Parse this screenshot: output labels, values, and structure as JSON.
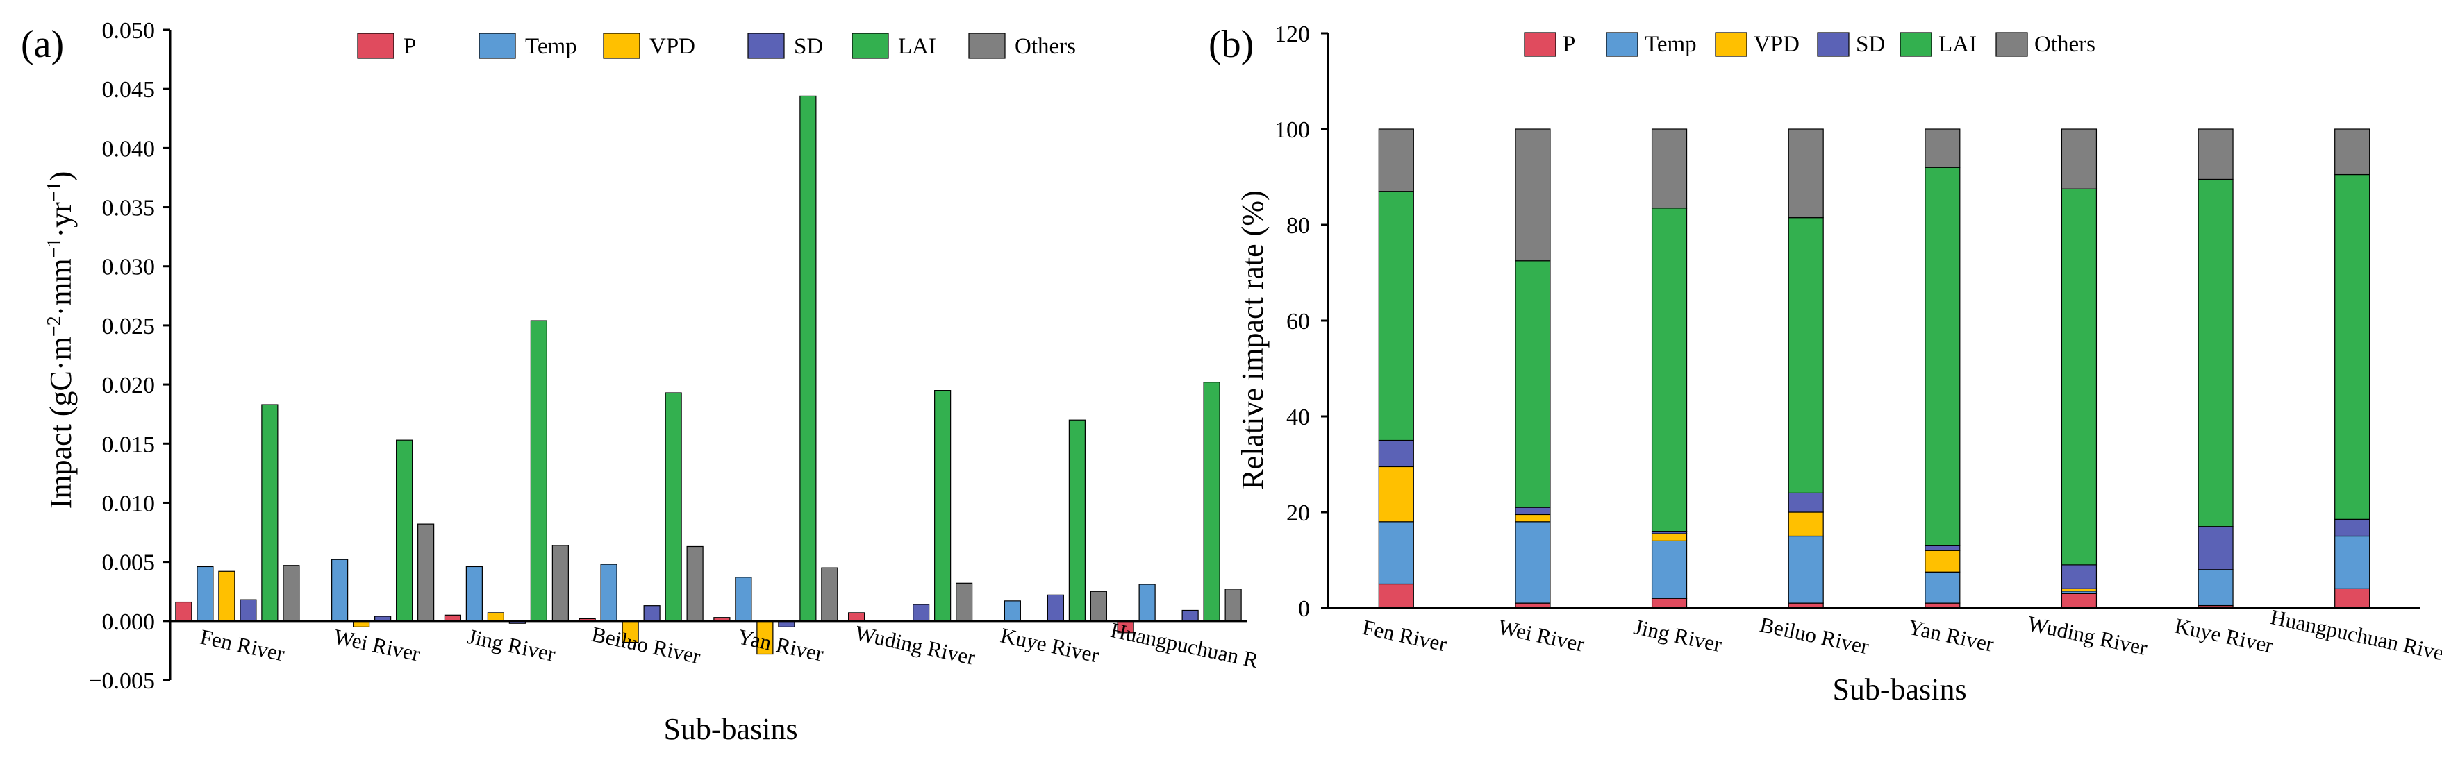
{
  "colors": {
    "P": "#e04b5e",
    "Temp": "#5b9bd5",
    "VPD": "#ffc000",
    "SD": "#5b62b6",
    "LAI": "#33b04f",
    "Others": "#808080"
  },
  "chart_data": [
    {
      "panel": "(a)",
      "type": "bar",
      "title": "",
      "xlabel": "Sub-basins",
      "ylabel": "Impact (gC·m⁻2·mm⁻1·yr⁻1)",
      "ylabel_parts": [
        "Impact (gC·m",
        "−2",
        "·mm",
        "−1",
        "·yr",
        "−1",
        ")"
      ],
      "ylim": [
        -0.005,
        0.05
      ],
      "yticks": [
        -0.005,
        0.0,
        0.005,
        0.01,
        0.015,
        0.02,
        0.025,
        0.03,
        0.035,
        0.04,
        0.045,
        0.05
      ],
      "ytick_labels": [
        "−0.005",
        "0.000",
        "0.005",
        "0.010",
        "0.015",
        "0.020",
        "0.025",
        "0.030",
        "0.035",
        "0.040",
        "0.045",
        "0.050"
      ],
      "categories": [
        "Fen River",
        "Wei River",
        "Jing River",
        "Beiluo River",
        "Yan River",
        "Wuding River",
        "Kuye River",
        "Huangpuchuan R"
      ],
      "legend": [
        "P",
        "Temp",
        "VPD",
        "SD",
        "LAI",
        "Others"
      ],
      "legend_position": "top",
      "series": [
        {
          "name": "P",
          "values": [
            0.0016,
            0.0,
            0.0005,
            0.0002,
            0.0003,
            0.0007,
            0.0,
            -0.001
          ]
        },
        {
          "name": "Temp",
          "values": [
            0.0046,
            0.0052,
            0.0046,
            0.0048,
            0.0037,
            0.0,
            0.0017,
            0.0031
          ]
        },
        {
          "name": "VPD",
          "values": [
            0.0042,
            -0.0005,
            0.0007,
            -0.0018,
            -0.0028,
            0.0,
            0.0,
            0.0
          ]
        },
        {
          "name": "SD",
          "values": [
            0.0018,
            0.0004,
            -0.0002,
            0.0013,
            -0.0005,
            0.0014,
            0.0022,
            0.0009
          ]
        },
        {
          "name": "LAI",
          "values": [
            0.0183,
            0.0153,
            0.0254,
            0.0193,
            0.0444,
            0.0195,
            0.017,
            0.0202
          ]
        },
        {
          "name": "Others",
          "values": [
            0.0047,
            0.0082,
            0.0064,
            0.0063,
            0.0045,
            0.0032,
            0.0025,
            0.0027
          ]
        }
      ]
    },
    {
      "panel": "(b)",
      "type": "stacked-bar",
      "title": "",
      "xlabel": "Sub-basins",
      "ylabel": "Relative impact rate (%)",
      "ylim": [
        0,
        120
      ],
      "yticks": [
        0,
        20,
        40,
        60,
        80,
        100,
        120
      ],
      "ytick_labels": [
        "0",
        "20",
        "40",
        "60",
        "80",
        "100",
        "120"
      ],
      "categories": [
        "Fen River",
        "Wei River",
        "Jing River",
        "Beiluo River",
        "Yan River",
        "Wuding River",
        "Kuye River",
        "Huangpuchuan River"
      ],
      "legend": [
        "P",
        "Temp",
        "VPD",
        "SD",
        "LAI",
        "Others"
      ],
      "legend_position": "top",
      "series": [
        {
          "name": "P",
          "values": [
            5.0,
            1.0,
            2.0,
            1.0,
            1.0,
            3.0,
            0.5,
            4.0
          ]
        },
        {
          "name": "Temp",
          "values": [
            13.0,
            17.0,
            12.0,
            14.0,
            6.5,
            0.5,
            7.5,
            11.0
          ]
        },
        {
          "name": "VPD",
          "values": [
            11.5,
            1.5,
            1.5,
            5.0,
            4.5,
            0.5,
            0.0,
            0.0
          ]
        },
        {
          "name": "SD",
          "values": [
            5.5,
            1.5,
            0.5,
            4.0,
            1.0,
            5.0,
            9.0,
            3.5
          ]
        },
        {
          "name": "LAI",
          "values": [
            52.0,
            51.5,
            67.5,
            57.5,
            79.0,
            78.5,
            72.5,
            72.0
          ]
        },
        {
          "name": "Others",
          "values": [
            13.0,
            27.5,
            16.5,
            18.5,
            8.0,
            12.5,
            10.5,
            9.5
          ]
        }
      ]
    }
  ]
}
